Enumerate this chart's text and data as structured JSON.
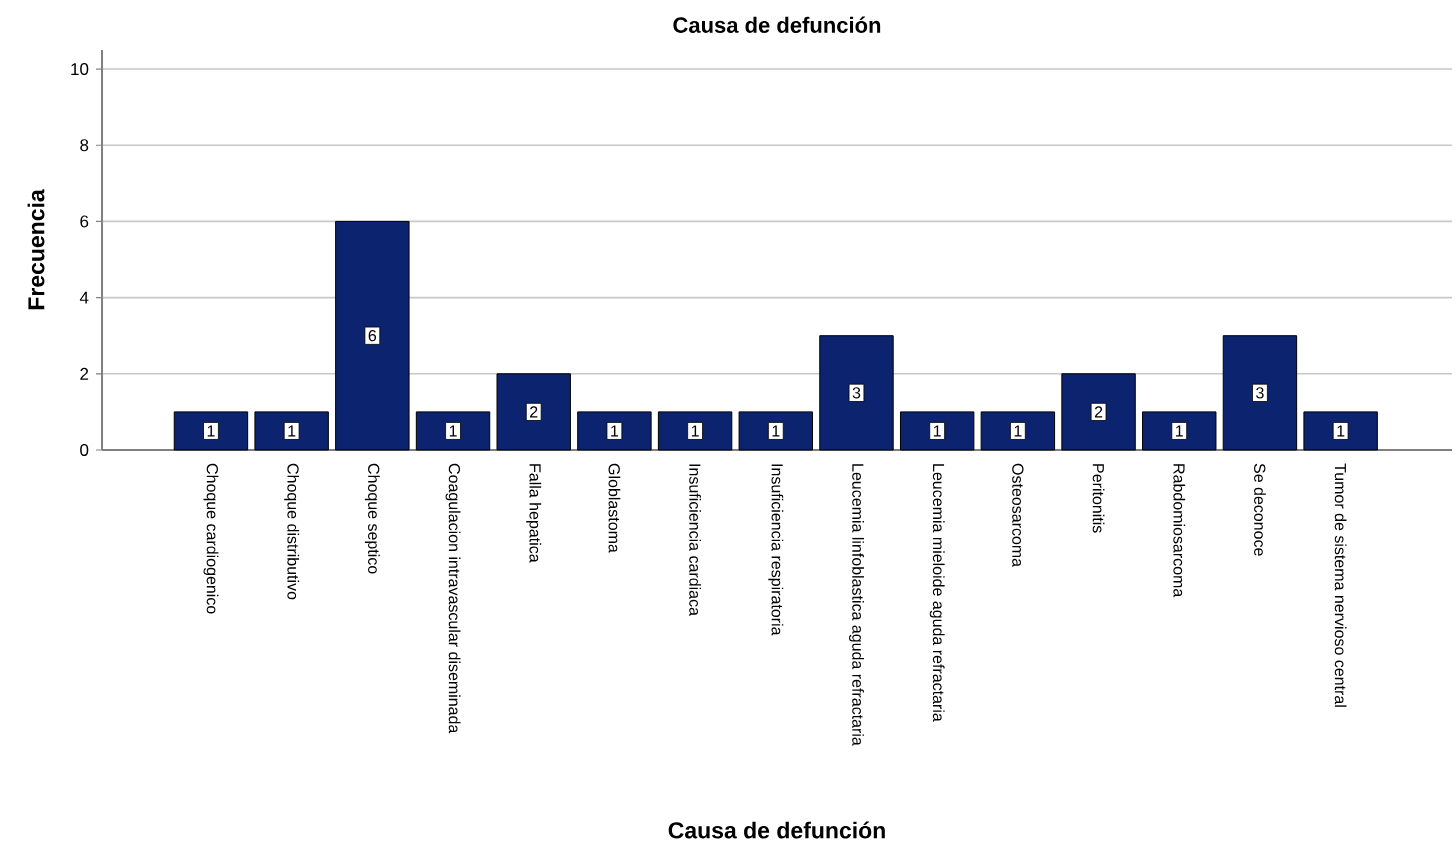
{
  "chart_data": {
    "type": "bar",
    "title": "Causa de defunción",
    "xlabel": "Causa de defunción",
    "ylabel": "Frecuencia",
    "categories": [
      "Choque cardiogenico",
      "Choque distributivo",
      "Choque septico",
      "Coagulacion intravascular diseminada",
      "Falla hepatica",
      "Globlastoma",
      "Insuficiencia cardiaca",
      "Insuficiencia respiratoria",
      "Leucemia linfoblastica aguda refractaria",
      "Leucemia mieloide aguda refractaria",
      "Osteosarcoma",
      "Peritonitis",
      "Rabdomiosarcoma",
      "Se deconoce",
      "Tumor de sistema nervioso central"
    ],
    "values": [
      1,
      1,
      6,
      1,
      2,
      1,
      1,
      1,
      3,
      1,
      1,
      2,
      1,
      3,
      1
    ],
    "color": "#0c2470",
    "ylim": [
      0,
      10.5
    ],
    "yticks": [
      0,
      2,
      4,
      6,
      8,
      10
    ],
    "grid": "y",
    "data_labels": true
  }
}
